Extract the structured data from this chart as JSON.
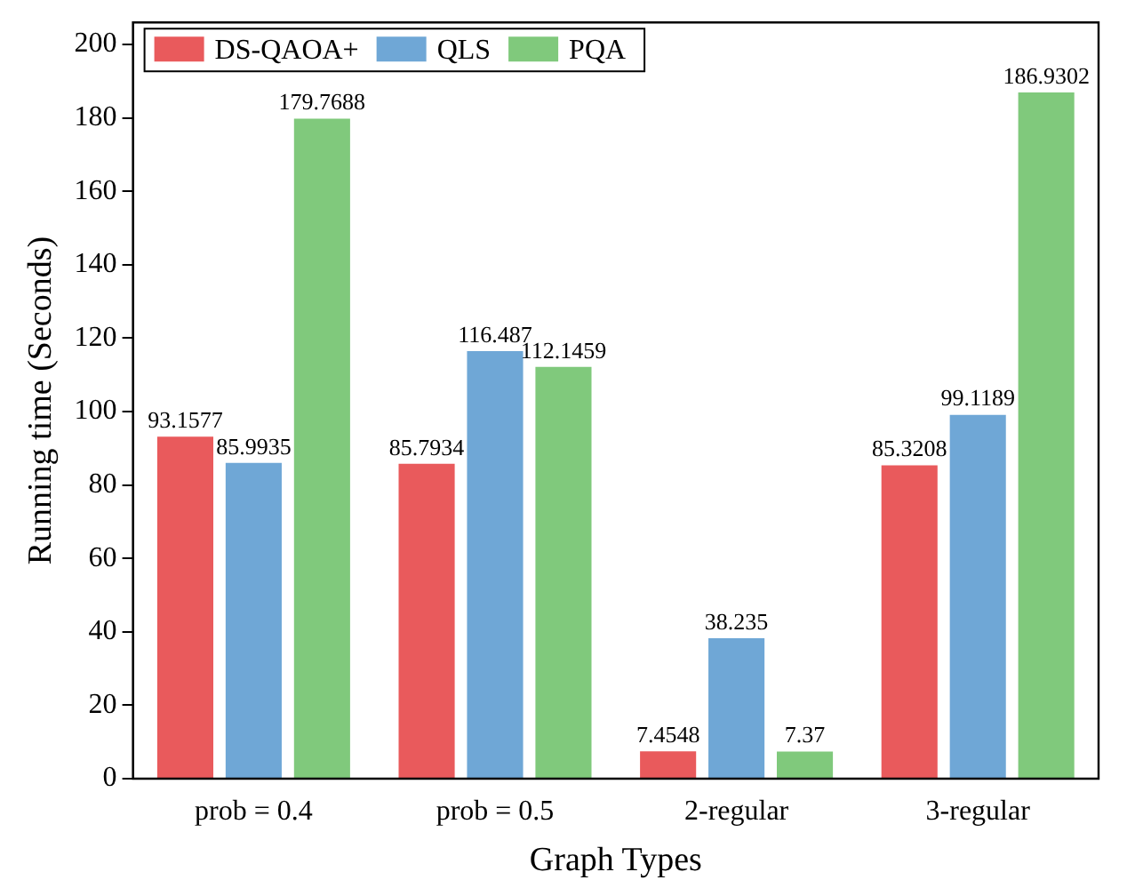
{
  "chart_data": {
    "type": "bar",
    "xlabel": "Graph Types",
    "ylabel": "Running time (Seconds)",
    "categories": [
      "prob = 0.4",
      "prob = 0.5",
      "2-regular",
      "3-regular"
    ],
    "series": [
      {
        "name": "DS-QAOA+",
        "color": "#e95a5c",
        "values": [
          93.1577,
          85.7934,
          7.4548,
          85.3208
        ]
      },
      {
        "name": "QLS",
        "color": "#6fa7d6",
        "values": [
          85.9935,
          116.487,
          38.235,
          99.1189
        ]
      },
      {
        "name": "PQA",
        "color": "#80c97c",
        "values": [
          179.7688,
          112.1459,
          7.37,
          186.9302
        ]
      }
    ],
    "ylim": [
      0,
      206
    ],
    "yticks": [
      0,
      20,
      40,
      60,
      80,
      100,
      120,
      140,
      160,
      180,
      200
    ],
    "grid": false,
    "legend": "top left",
    "data_labels": true
  }
}
